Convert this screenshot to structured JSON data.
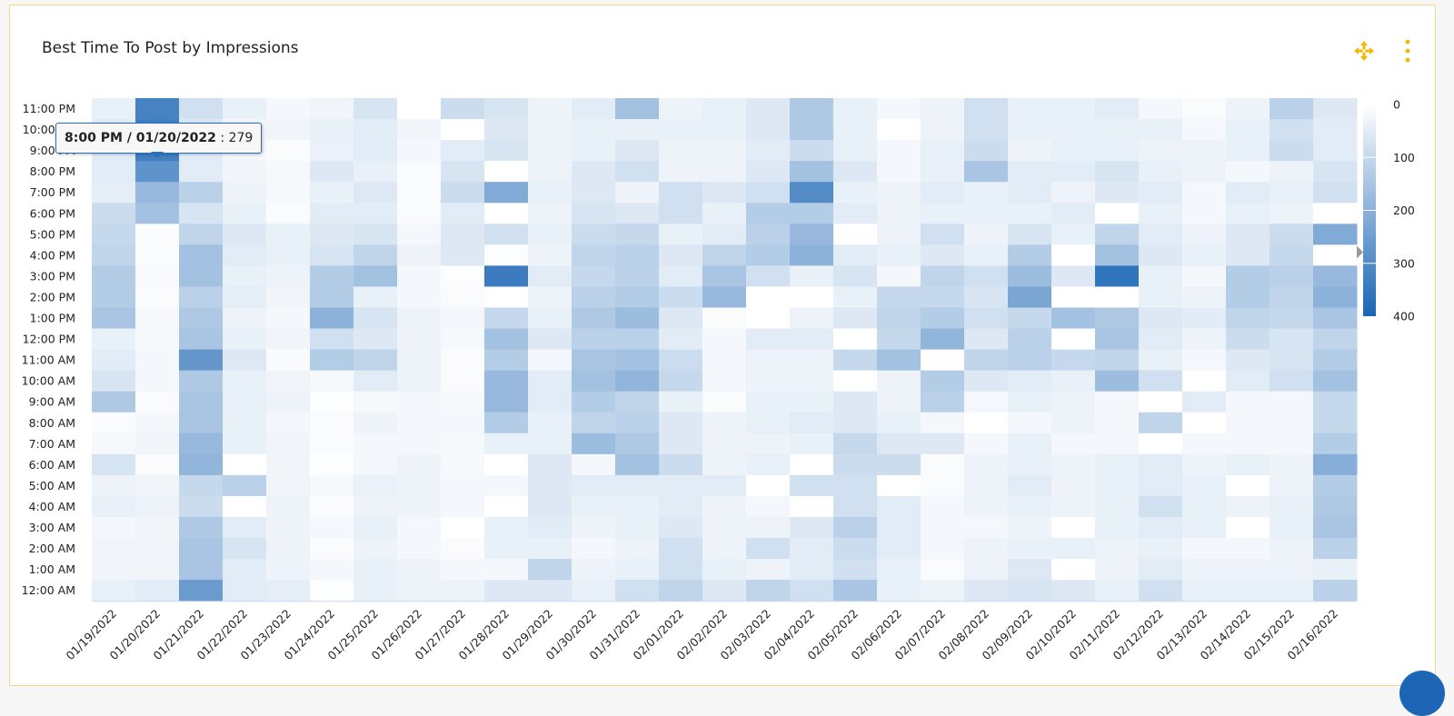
{
  "header": {
    "title": "Best Time To Post by Impressions",
    "move_icon": "move-arrows-icon",
    "menu_icon": "vertical-dots-icon",
    "accent": "#f5b800"
  },
  "tooltip": {
    "label": "8:00 PM / 01/20/2022",
    "separator": " : ",
    "value": "279"
  },
  "chart_data": {
    "type": "heatmap",
    "title": "Best Time To Post by Impressions",
    "xlabel": "",
    "ylabel": "",
    "x": [
      "01/19/2022",
      "01/20/2022",
      "01/21/2022",
      "01/22/2022",
      "01/23/2022",
      "01/24/2022",
      "01/25/2022",
      "01/26/2022",
      "01/27/2022",
      "01/28/2022",
      "01/29/2022",
      "01/30/2022",
      "01/31/2022",
      "02/01/2022",
      "02/02/2022",
      "02/03/2022",
      "02/04/2022",
      "02/05/2022",
      "02/06/2022",
      "02/07/2022",
      "02/08/2022",
      "02/09/2022",
      "02/10/2022",
      "02/11/2022",
      "02/12/2022",
      "02/13/2022",
      "02/14/2022",
      "02/15/2022",
      "02/16/2022"
    ],
    "y": [
      "11:00 PM",
      "10:00 PM",
      "9:00 PM",
      "8:00 PM",
      "7:00 PM",
      "6:00 PM",
      "5:00 PM",
      "4:00 PM",
      "3:00 PM",
      "2:00 PM",
      "1:00 PM",
      "12:00 PM",
      "11:00 AM",
      "10:00 AM",
      "9:00 AM",
      "8:00 AM",
      "7:00 AM",
      "6:00 AM",
      "5:00 AM",
      "4:00 AM",
      "3:00 AM",
      "2:00 AM",
      "1:00 AM",
      "12:00 AM"
    ],
    "values_by_date": [
      [
        40,
        50,
        50,
        50,
        45,
        90,
        100,
        110,
        130,
        130,
        150,
        40,
        50,
        70,
        140,
        10,
        15,
        70,
        30,
        40,
        20,
        25,
        25,
        40
      ],
      [
        320,
        330,
        330,
        279,
        180,
        160,
        8,
        10,
        12,
        10,
        15,
        15,
        20,
        20,
        10,
        20,
        25,
        10,
        25,
        30,
        25,
        25,
        25,
        50
      ],
      [
        80,
        60,
        50,
        50,
        120,
        70,
        110,
        160,
        160,
        120,
        140,
        150,
        270,
        140,
        150,
        150,
        180,
        190,
        100,
        90,
        140,
        150,
        150,
        260
      ],
      [
        40,
        25,
        20,
        25,
        30,
        40,
        60,
        50,
        40,
        45,
        30,
        40,
        60,
        40,
        40,
        40,
        40,
        0,
        120,
        0,
        50,
        70,
        50,
        50
      ],
      [
        20,
        25,
        10,
        15,
        15,
        10,
        40,
        40,
        30,
        25,
        20,
        25,
        10,
        25,
        30,
        20,
        25,
        25,
        25,
        30,
        30,
        30,
        30,
        45
      ],
      [
        25,
        40,
        35,
        60,
        40,
        50,
        60,
        70,
        130,
        130,
        200,
        80,
        130,
        15,
        5,
        10,
        10,
        5,
        15,
        10,
        20,
        10,
        20,
        5
      ],
      [
        70,
        50,
        50,
        40,
        60,
        50,
        70,
        110,
        160,
        40,
        70,
        60,
        110,
        50,
        15,
        30,
        20,
        20,
        35,
        30,
        40,
        30,
        40,
        40
      ],
      [
        0,
        25,
        20,
        10,
        10,
        10,
        20,
        30,
        20,
        20,
        30,
        30,
        30,
        30,
        20,
        20,
        20,
        30,
        30,
        30,
        20,
        20,
        30,
        30
      ],
      [
        90,
        0,
        50,
        70,
        90,
        50,
        60,
        60,
        5,
        10,
        20,
        15,
        10,
        10,
        15,
        20,
        15,
        15,
        20,
        20,
        0,
        10,
        20,
        30
      ],
      [
        70,
        60,
        70,
        0,
        220,
        0,
        80,
        5,
        340,
        0,
        100,
        160,
        130,
        180,
        180,
        130,
        40,
        0,
        20,
        0,
        40,
        40,
        20,
        60
      ],
      [
        30,
        30,
        30,
        30,
        40,
        30,
        40,
        30,
        50,
        30,
        40,
        60,
        20,
        50,
        50,
        40,
        40,
        60,
        60,
        60,
        50,
        40,
        110,
        60
      ],
      [
        50,
        40,
        40,
        60,
        60,
        70,
        90,
        110,
        100,
        120,
        140,
        120,
        150,
        160,
        130,
        110,
        170,
        20,
        50,
        40,
        30,
        20,
        30,
        40
      ],
      [
        160,
        40,
        60,
        80,
        30,
        60,
        100,
        120,
        120,
        130,
        170,
        120,
        160,
        190,
        110,
        120,
        140,
        160,
        50,
        40,
        40,
        30,
        40,
        80
      ],
      [
        30,
        40,
        30,
        30,
        80,
        80,
        40,
        60,
        50,
        90,
        60,
        50,
        90,
        100,
        40,
        60,
        60,
        90,
        50,
        50,
        60,
        80,
        80,
        110
      ],
      [
        40,
        40,
        30,
        30,
        60,
        40,
        50,
        110,
        150,
        180,
        10,
        20,
        20,
        20,
        10,
        30,
        30,
        30,
        50,
        30,
        30,
        30,
        40,
        60
      ],
      [
        60,
        60,
        50,
        60,
        80,
        130,
        120,
        130,
        80,
        0,
        0,
        50,
        30,
        30,
        40,
        40,
        30,
        40,
        0,
        20,
        30,
        80,
        30,
        110
      ],
      [
        140,
        140,
        90,
        160,
        300,
        130,
        180,
        200,
        40,
        0,
        30,
        50,
        30,
        30,
        40,
        50,
        40,
        0,
        80,
        0,
        60,
        50,
        50,
        80
      ],
      [
        40,
        40,
        40,
        60,
        40,
        50,
        0,
        50,
        70,
        40,
        60,
        0,
        100,
        0,
        60,
        60,
        100,
        90,
        80,
        80,
        120,
        90,
        80,
        150
      ],
      [
        20,
        0,
        20,
        20,
        30,
        30,
        30,
        40,
        20,
        100,
        110,
        100,
        160,
        30,
        30,
        40,
        60,
        90,
        0,
        50,
        50,
        50,
        40,
        40
      ],
      [
        30,
        30,
        40,
        40,
        50,
        40,
        80,
        60,
        110,
        100,
        130,
        190,
        0,
        130,
        120,
        20,
        60,
        10,
        10,
        20,
        20,
        20,
        10,
        30
      ],
      [
        80,
        80,
        90,
        150,
        40,
        40,
        30,
        40,
        80,
        70,
        80,
        60,
        110,
        60,
        20,
        0,
        20,
        30,
        30,
        30,
        20,
        30,
        30,
        60
      ],
      [
        40,
        40,
        30,
        50,
        50,
        40,
        70,
        130,
        170,
        230,
        100,
        120,
        120,
        50,
        40,
        20,
        40,
        40,
        50,
        40,
        30,
        40,
        60,
        70
      ],
      [
        40,
        40,
        40,
        50,
        30,
        50,
        40,
        0,
        60,
        0,
        160,
        0,
        100,
        40,
        30,
        30,
        20,
        30,
        30,
        30,
        0,
        40,
        0,
        60
      ],
      [
        50,
        40,
        40,
        70,
        60,
        0,
        110,
        160,
        360,
        0,
        140,
        150,
        110,
        170,
        20,
        20,
        20,
        40,
        40,
        40,
        40,
        30,
        30,
        40
      ],
      [
        20,
        40,
        30,
        40,
        50,
        40,
        50,
        60,
        40,
        40,
        60,
        50,
        40,
        80,
        0,
        110,
        0,
        50,
        50,
        80,
        50,
        40,
        50,
        80
      ],
      [
        10,
        20,
        30,
        30,
        20,
        20,
        30,
        40,
        20,
        30,
        50,
        30,
        20,
        0,
        50,
        0,
        20,
        30,
        40,
        40,
        40,
        20,
        30,
        40
      ],
      [
        30,
        40,
        40,
        20,
        50,
        40,
        60,
        60,
        130,
        130,
        110,
        90,
        60,
        50,
        20,
        20,
        20,
        40,
        0,
        30,
        0,
        20,
        30,
        40
      ],
      [
        120,
        80,
        90,
        30,
        40,
        30,
        90,
        100,
        120,
        110,
        100,
        70,
        70,
        80,
        20,
        20,
        20,
        30,
        30,
        40,
        40,
        30,
        30,
        40
      ],
      [
        60,
        50,
        50,
        70,
        80,
        0,
        220,
        0,
        180,
        200,
        150,
        110,
        130,
        160,
        100,
        100,
        130,
        210,
        130,
        140,
        150,
        120,
        40,
        120
      ]
    ],
    "color_scale": {
      "min": 0,
      "max": 400,
      "min_color": "#ffffff",
      "max_color": "#1964b4",
      "ticks": [
        "0",
        "100",
        "200",
        "300",
        "400"
      ]
    },
    "legend": "right",
    "legend_marker_value": 279,
    "grid": false
  }
}
